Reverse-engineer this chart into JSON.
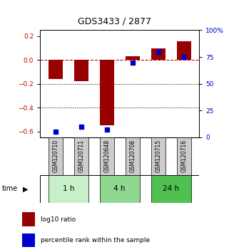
{
  "title": "GDS3433 / 2877",
  "samples": [
    "GSM120710",
    "GSM120711",
    "GSM120648",
    "GSM120708",
    "GSM120715",
    "GSM120716"
  ],
  "log10_ratio": [
    -0.16,
    -0.175,
    -0.55,
    0.03,
    0.1,
    0.155
  ],
  "percentile_rank": [
    5,
    10,
    7,
    70,
    80,
    75
  ],
  "time_groups": [
    {
      "label": "1 h",
      "indices": [
        0,
        1
      ],
      "color": "#c8f0c8"
    },
    {
      "label": "4 h",
      "indices": [
        2,
        3
      ],
      "color": "#90d890"
    },
    {
      "label": "24 h",
      "indices": [
        4,
        5
      ],
      "color": "#50c050"
    }
  ],
  "bar_color": "#990000",
  "dot_color": "#0000cc",
  "left_axis_color": "#cc0000",
  "right_axis_color": "#0000cc",
  "ylim_left": [
    -0.65,
    0.25
  ],
  "ylim_right": [
    0,
    100
  ],
  "yticks_left": [
    0.2,
    0.0,
    -0.2,
    -0.4,
    -0.6
  ],
  "yticks_right": [
    100,
    75,
    50,
    25,
    0
  ],
  "bar_width": 0.55,
  "dot_size": 18,
  "label_box_color": "#cccccc",
  "hline_color": "black",
  "zero_line_color": "#cc0000"
}
